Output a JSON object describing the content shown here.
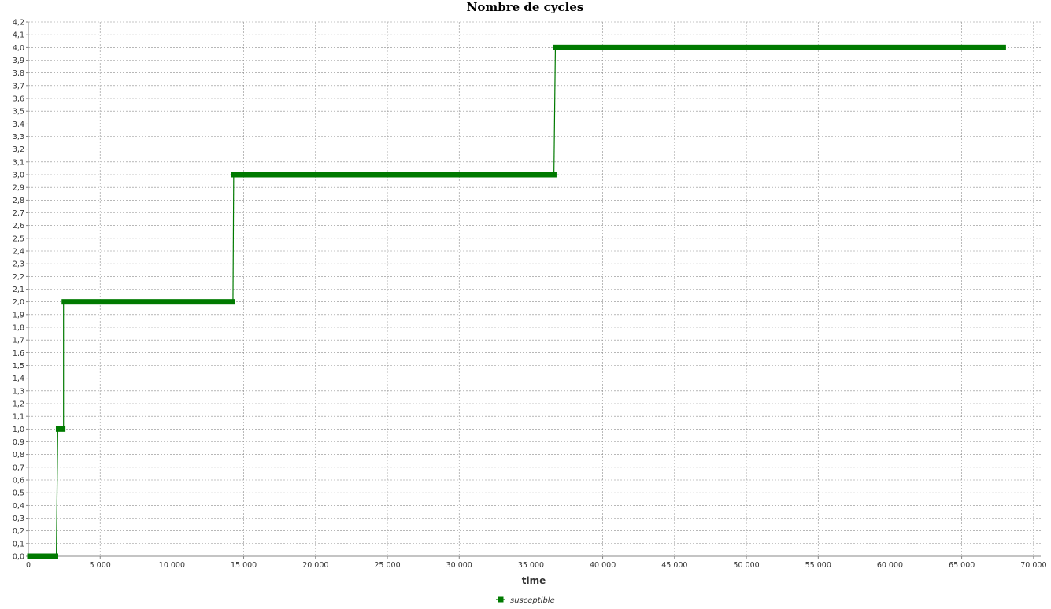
{
  "chart_data": {
    "type": "line",
    "title": "Nombre de cycles",
    "xlabel": "time",
    "ylabel": "",
    "xlim": [
      0,
      70500
    ],
    "ylim": [
      0,
      4.2
    ],
    "x_ticks": [
      0,
      5000,
      10000,
      15000,
      20000,
      25000,
      30000,
      35000,
      40000,
      45000,
      50000,
      55000,
      60000,
      65000,
      70000
    ],
    "x_tick_labels": [
      "0",
      "5 000",
      "10 000",
      "15 000",
      "20 000",
      "25 000",
      "30 000",
      "35 000",
      "40 000",
      "45 000",
      "50 000",
      "55 000",
      "60 000",
      "65 000",
      "70 000"
    ],
    "y_ticks": [
      0,
      0.1,
      0.2,
      0.3,
      0.4,
      0.5,
      0.6,
      0.7,
      0.8,
      0.9,
      1.0,
      1.1,
      1.2,
      1.3,
      1.4,
      1.5,
      1.6,
      1.7,
      1.8,
      1.9,
      2.0,
      2.1,
      2.2,
      2.3,
      2.4,
      2.5,
      2.6,
      2.7,
      2.8,
      2.9,
      3.0,
      3.1,
      3.2,
      3.3,
      3.4,
      3.5,
      3.6,
      3.7,
      3.8,
      3.9,
      4.0,
      4.1,
      4.2
    ],
    "y_tick_labels": [
      "0,0",
      "0,1",
      "0,2",
      "0,3",
      "0,4",
      "0,5",
      "0,6",
      "0,7",
      "0,8",
      "0,9",
      "1,0",
      "1,1",
      "1,2",
      "1,3",
      "1,4",
      "1,5",
      "1,6",
      "1,7",
      "1,8",
      "1,9",
      "2,0",
      "2,1",
      "2,2",
      "2,3",
      "2,4",
      "2,5",
      "2,6",
      "2,7",
      "2,8",
      "2,9",
      "3,0",
      "3,1",
      "3,2",
      "3,3",
      "3,4",
      "3,5",
      "3,6",
      "3,7",
      "3,8",
      "3,9",
      "4,0",
      "4,1",
      "4,2"
    ],
    "grid": true,
    "legend_position": "bottom-center",
    "series": [
      {
        "name": "susceptible",
        "color": "#007a00",
        "marker": "square",
        "segments": [
          {
            "y": 0,
            "x_start": 0,
            "x_end": 2000
          },
          {
            "y": 1,
            "x_start": 2000,
            "x_end": 2500
          },
          {
            "y": 2,
            "x_start": 2400,
            "x_end": 14300
          },
          {
            "y": 3,
            "x_start": 14200,
            "x_end": 36700
          },
          {
            "y": 4,
            "x_start": 36600,
            "x_end": 68000
          }
        ],
        "transitions": [
          {
            "x_from": 1950,
            "y_from": 0,
            "x_to": 2050,
            "y_to": 1
          },
          {
            "x_from": 2450,
            "y_from": 1,
            "x_to": 2450,
            "y_to": 2
          },
          {
            "x_from": 14250,
            "y_from": 2,
            "x_to": 14300,
            "y_to": 3
          },
          {
            "x_from": 36600,
            "y_from": 3,
            "x_to": 36700,
            "y_to": 4
          }
        ]
      }
    ]
  }
}
